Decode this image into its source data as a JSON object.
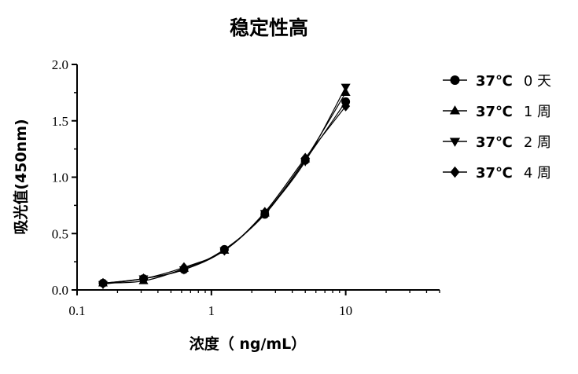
{
  "chart_data": {
    "type": "line",
    "title": "稳定性高",
    "xlabel": "浓度（ ng/mL）",
    "ylabel": "吸光值(450nm)",
    "x_scale": "log",
    "xlim": [
      0.1,
      50
    ],
    "ylim": [
      0,
      2.0
    ],
    "x_ticks": [
      "0.1",
      "1",
      "10"
    ],
    "y_ticks": [
      "0.0",
      "0.5",
      "1.0",
      "1.5",
      "2.0"
    ],
    "grid": false,
    "legend_position": "top-right",
    "x": [
      0.156,
      0.3125,
      0.625,
      1.25,
      2.5,
      5,
      10
    ],
    "series": [
      {
        "name": "37℃  0 天",
        "temp": "37℃",
        "period": "0 天",
        "marker": "circle",
        "values": [
          0.06,
          0.1,
          0.18,
          0.36,
          0.67,
          1.15,
          1.67
        ]
      },
      {
        "name": "37℃  1 周",
        "temp": "37℃",
        "period": "1 周",
        "marker": "triangle-up",
        "values": [
          0.06,
          0.08,
          0.19,
          0.35,
          0.68,
          1.16,
          1.75
        ]
      },
      {
        "name": "37℃  2 周",
        "temp": "37℃",
        "period": "2 周",
        "marker": "triangle-down",
        "values": [
          0.05,
          0.1,
          0.18,
          0.35,
          0.68,
          1.14,
          1.8
        ]
      },
      {
        "name": "37℃  4 周",
        "temp": "37℃",
        "period": "4 周",
        "marker": "diamond",
        "values": [
          0.06,
          0.1,
          0.2,
          0.35,
          0.69,
          1.17,
          1.63
        ]
      }
    ]
  }
}
